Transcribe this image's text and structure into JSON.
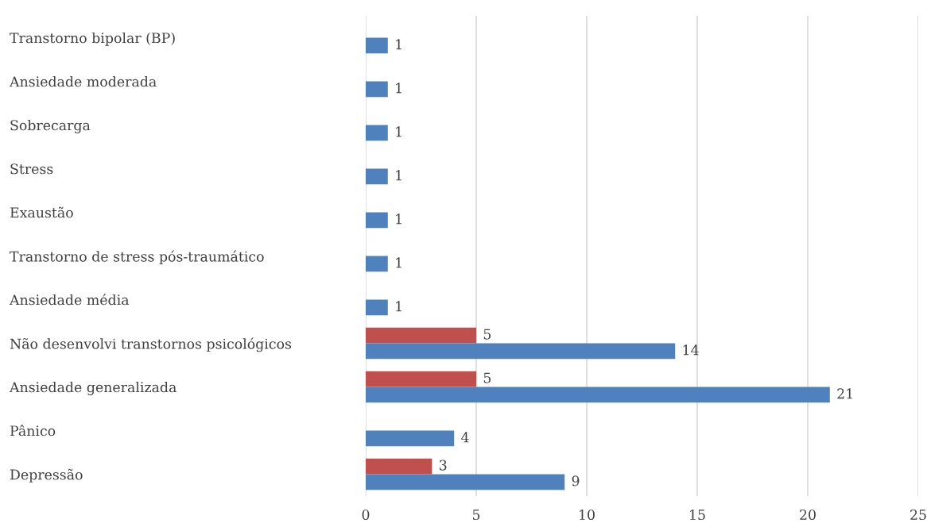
{
  "chart_data": {
    "type": "bar",
    "orientation": "horizontal",
    "categories": [
      "Transtorno bipolar (BP)",
      "Ansiedade moderada",
      "Sobrecarga",
      "Stress",
      "Exaustão",
      "Transtorno de stress pós-traumático",
      "Ansiedade média",
      "Não desenvolvi transtornos psicológicos",
      "Ansiedade generalizada",
      "Pânico",
      "Depressão"
    ],
    "series": [
      {
        "color": "#c0504d",
        "values": [
          null,
          null,
          null,
          null,
          null,
          null,
          null,
          5,
          5,
          null,
          3
        ]
      },
      {
        "color": "#4f81bd",
        "values": [
          1,
          1,
          1,
          1,
          1,
          1,
          1,
          14,
          21,
          4,
          9
        ]
      }
    ],
    "xlim": [
      0,
      25
    ],
    "xticks": [
      0,
      5,
      10,
      15,
      20,
      25
    ],
    "grid": "x",
    "data_labels": true
  }
}
